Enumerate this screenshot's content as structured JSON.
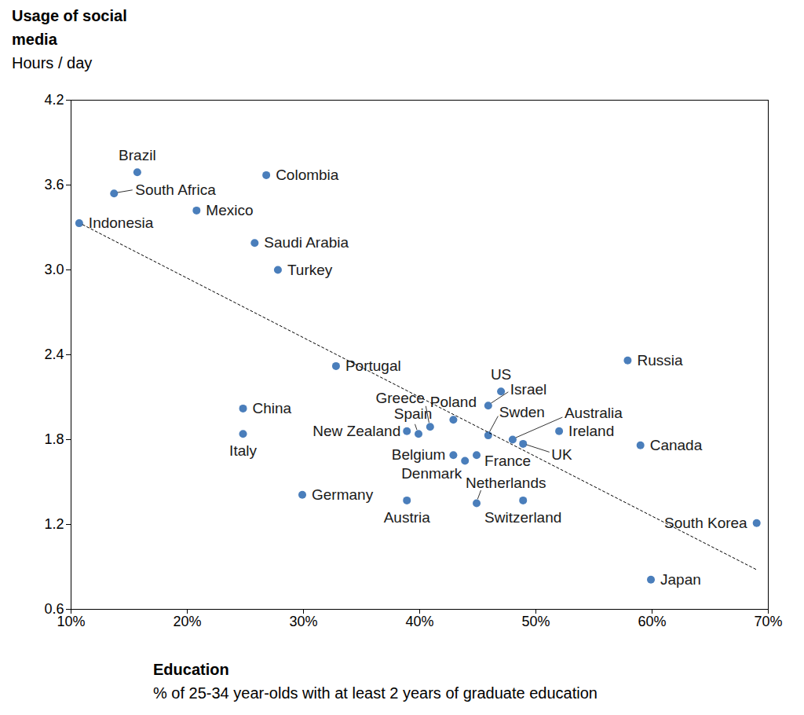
{
  "chart_data": {
    "type": "scatter",
    "title": "Usage of social media",
    "subtitle": "Hours / day",
    "x_label": "Education",
    "x_sublabel": "% of 25-34 year-olds with at least 2 years of graduate education",
    "xlim": [
      10,
      70
    ],
    "xticks": [
      {
        "value": 10,
        "label": "10%"
      },
      {
        "value": 20,
        "label": "20%"
      },
      {
        "value": 30,
        "label": "30%"
      },
      {
        "value": 40,
        "label": "40%"
      },
      {
        "value": 50,
        "label": "50%"
      },
      {
        "value": 60,
        "label": "60%"
      },
      {
        "value": 70,
        "label": "70%"
      }
    ],
    "ylim": [
      0.6,
      4.2
    ],
    "yticks": [
      0.6,
      1.2,
      1.8,
      2.4,
      {
        "value": 3,
        "label": "3.0"
      },
      3.6,
      4.2
    ],
    "grid": false,
    "series": [
      {
        "type": "scatter",
        "marker": "circle",
        "color": "#4a7ebb",
        "labels": [
          "Brazil",
          "South Africa",
          "Colombia",
          "Mexico",
          "Indonesia",
          "Saudi Arabia",
          "Turkey",
          "Portugal",
          "Russia",
          "China",
          "Italy",
          "US",
          "Israel",
          "Poland",
          "Greece",
          "Spain",
          "New Zealand",
          "Swden",
          "Australia",
          "Ireland",
          "UK",
          "Canada",
          "Belgium",
          "Denmark",
          "France",
          "Netherlands",
          "Switzerland",
          "Austria",
          "Germany",
          "South Korea",
          "Japan"
        ],
        "x": [
          15.7,
          13.7,
          26.8,
          20.8,
          10.7,
          25.8,
          27.8,
          32.8,
          57.9,
          24.8,
          24.8,
          47.0,
          45.9,
          42.9,
          40.9,
          39.9,
          38.9,
          45.9,
          48.0,
          52.0,
          48.9,
          59.0,
          42.9,
          43.9,
          44.9,
          44.9,
          48.9,
          38.9,
          29.9,
          69.0,
          59.9
        ],
        "values": [
          3.69,
          3.54,
          3.67,
          3.42,
          3.33,
          3.19,
          3.0,
          2.32,
          2.36,
          2.02,
          1.84,
          2.14,
          2.04,
          1.94,
          1.89,
          1.84,
          1.86,
          1.83,
          1.8,
          1.86,
          1.77,
          1.76,
          1.69,
          1.65,
          1.69,
          1.35,
          1.37,
          1.37,
          1.41,
          1.21,
          0.81
        ]
      },
      {
        "type": "line",
        "line_style": "dashed",
        "color": "#000000",
        "x": [
          11,
          69
        ],
        "values": [
          3.32,
          0.88
        ]
      }
    ]
  }
}
